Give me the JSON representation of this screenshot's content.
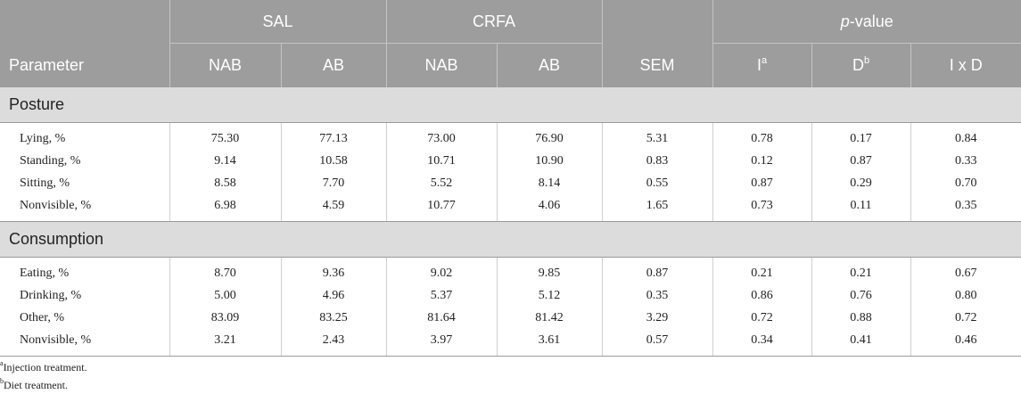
{
  "header": {
    "group_sal": "SAL",
    "group_crfa": "CRFA",
    "group_pvalue_italic": "p",
    "group_pvalue_rest": "-value",
    "parameter": "Parameter",
    "nab": "NAB",
    "ab": "AB",
    "sem": "SEM",
    "i_label": "I",
    "i_sup": "a",
    "d_label": "D",
    "d_sup": "b",
    "ixd": "I x D"
  },
  "sections": [
    {
      "title": "Posture",
      "rows": [
        {
          "label": "Lying, %",
          "cells": [
            "75.30",
            "77.13",
            "73.00",
            "76.90",
            "5.31",
            "0.78",
            "0.17",
            "0.84"
          ]
        },
        {
          "label": "Standing, %",
          "cells": [
            "9.14",
            "10.58",
            "10.71",
            "10.90",
            "0.83",
            "0.12",
            "0.87",
            "0.33"
          ]
        },
        {
          "label": "Sitting, %",
          "cells": [
            "8.58",
            "7.70",
            "5.52",
            "8.14",
            "0.55",
            "0.87",
            "0.29",
            "0.70"
          ]
        },
        {
          "label": "Nonvisible, %",
          "cells": [
            "6.98",
            "4.59",
            "10.77",
            "4.06",
            "1.65",
            "0.73",
            "0.11",
            "0.35"
          ]
        }
      ]
    },
    {
      "title": "Consumption",
      "rows": [
        {
          "label": "Eating, %",
          "cells": [
            "8.70",
            "9.36",
            "9.02",
            "9.85",
            "0.87",
            "0.21",
            "0.21",
            "0.67"
          ]
        },
        {
          "label": "Drinking, %",
          "cells": [
            "5.00",
            "4.96",
            "5.37",
            "5.12",
            "0.35",
            "0.86",
            "0.76",
            "0.80"
          ]
        },
        {
          "label": "Other, %",
          "cells": [
            "83.09",
            "83.25",
            "81.64",
            "81.42",
            "3.29",
            "0.72",
            "0.88",
            "0.72"
          ]
        },
        {
          "label": "Nonvisible, %",
          "cells": [
            "3.21",
            "2.43",
            "3.97",
            "3.61",
            "0.57",
            "0.34",
            "0.41",
            "0.46"
          ]
        }
      ]
    }
  ],
  "footnotes": [
    {
      "sup": "a",
      "text": "Injection treatment."
    },
    {
      "sup": "b",
      "text": "Diet treatment."
    }
  ]
}
